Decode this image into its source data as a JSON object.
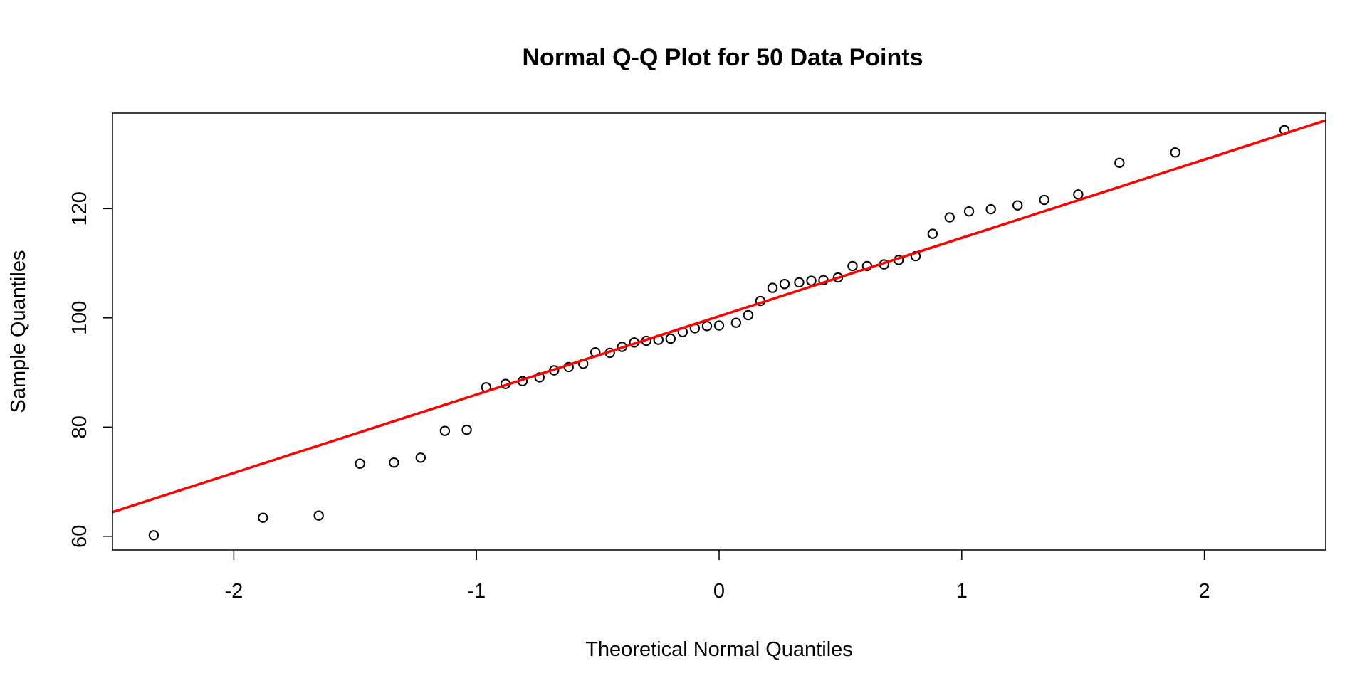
{
  "chart_data": {
    "type": "scatter",
    "title": "Normal Q-Q Plot for 50 Data Points",
    "xlabel": "Theoretical Normal Quantiles",
    "ylabel": "Sample Quantiles",
    "xlim": [
      -2.5,
      2.5
    ],
    "ylim": [
      57.5,
      137.5
    ],
    "x_ticks": [
      -2,
      -1,
      0,
      1,
      2
    ],
    "x_tick_labels": [
      "-2",
      "-1",
      "0",
      "1",
      "2"
    ],
    "y_ticks": [
      60,
      80,
      100,
      120
    ],
    "y_tick_labels": [
      "60",
      "80",
      "100",
      "120"
    ],
    "grid": false,
    "legend": "none",
    "point_color": "#000000",
    "line_color": "#ff0000",
    "reference_line": {
      "intercept": 100.3,
      "slope": 14.35
    },
    "series": [
      {
        "x": [
          -2.33,
          -1.88,
          -1.65,
          -1.48,
          -1.34,
          -1.23,
          -1.13,
          -1.04,
          -0.96,
          -0.88,
          -0.81,
          -0.74,
          -0.68,
          -0.62,
          -0.56,
          -0.51,
          -0.45,
          -0.4,
          -0.35,
          -0.3,
          -0.25,
          -0.2,
          -0.15,
          -0.1,
          -0.05,
          0.0,
          0.07,
          0.12,
          0.17,
          0.22,
          0.27,
          0.33,
          0.38,
          0.43,
          0.49,
          0.55,
          0.61,
          0.68,
          0.74,
          0.81,
          0.88,
          0.95,
          1.03,
          1.12,
          1.23,
          1.34,
          1.48,
          1.65,
          1.88,
          2.33
        ],
        "y": [
          60.2,
          63.4,
          63.8,
          73.3,
          73.5,
          74.4,
          79.3,
          79.5,
          87.3,
          87.9,
          88.4,
          89.1,
          90.4,
          91.0,
          91.6,
          93.7,
          93.6,
          94.7,
          95.5,
          95.8,
          96.0,
          96.2,
          97.4,
          98.1,
          98.5,
          98.6,
          99.1,
          100.5,
          103.1,
          105.5,
          106.2,
          106.5,
          106.8,
          106.9,
          107.4,
          109.5,
          109.5,
          109.8,
          110.6,
          111.3,
          115.4,
          118.4,
          119.5,
          119.9,
          120.6,
          121.6,
          122.6,
          128.4,
          130.3,
          134.4
        ]
      }
    ]
  }
}
